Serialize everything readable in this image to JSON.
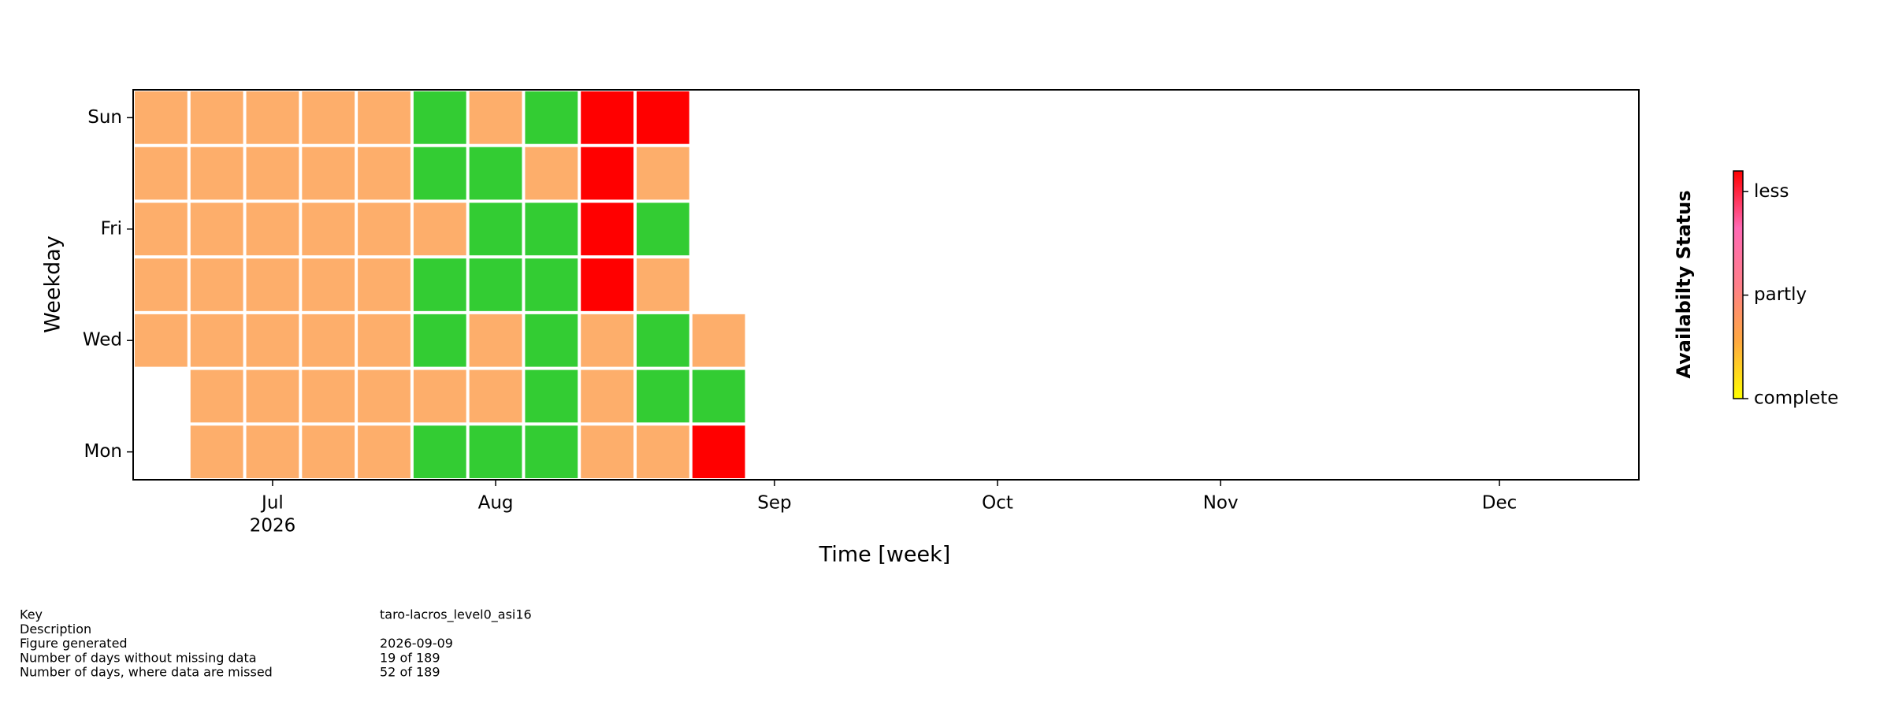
{
  "chart_data": {
    "type": "heatmap",
    "x_label": "Time [week]",
    "y_label": "Weekday",
    "categories": [
      "Mon",
      null,
      "Wed",
      null,
      "Fri",
      null,
      "Sun"
    ],
    "x": [
      0,
      1,
      2,
      3,
      4,
      5,
      6,
      7,
      8,
      9,
      10
    ],
    "values": [
      [
        null,
        1,
        1,
        1,
        1,
        0,
        0,
        0,
        1,
        1,
        2
      ],
      [
        null,
        1,
        1,
        1,
        1,
        1,
        1,
        0,
        1,
        0,
        0
      ],
      [
        1,
        1,
        1,
        1,
        1,
        0,
        1,
        0,
        1,
        0,
        1
      ],
      [
        1,
        1,
        1,
        1,
        1,
        0,
        0,
        0,
        2,
        1,
        null
      ],
      [
        1,
        1,
        1,
        1,
        1,
        1,
        0,
        0,
        2,
        0,
        null
      ],
      [
        1,
        1,
        1,
        1,
        1,
        0,
        0,
        1,
        2,
        1,
        null
      ],
      [
        1,
        1,
        1,
        1,
        1,
        0,
        1,
        0,
        2,
        2,
        null
      ]
    ],
    "colors": [
      "#33cc33",
      "#fdae6b",
      "#ff0000"
    ],
    "xlim": [
      0,
      27
    ],
    "ylim": [
      -0.5,
      6.5
    ],
    "xticks": [
      {
        "value": 2.5,
        "label": "Jul"
      },
      {
        "value": 6.5,
        "label": "Aug"
      },
      {
        "value": 11.5,
        "label": "Sep"
      },
      {
        "value": 15.5,
        "label": "Oct"
      },
      {
        "value": 19.5,
        "label": "Nov"
      },
      {
        "value": 24.5,
        "label": "Dec"
      }
    ],
    "x_year_label": "2026",
    "colorbar_label": "Availabilty Status",
    "colorbar_colors": [
      "#ffff00",
      "#ffa940",
      "#ff7f8a",
      "#ff69b4",
      "#ff0000"
    ],
    "colorbar_lim": [
      0,
      2.2
    ],
    "colorbar_ticks": [
      {
        "value": 0,
        "label": "complete"
      },
      {
        "value": 1,
        "label": "partly"
      },
      {
        "value": 2,
        "label": "less"
      }
    ]
  },
  "info": [
    {
      "label": "Key",
      "value": "taro-lacros_level0_asi16"
    },
    {
      "label": "Description"
    },
    {
      "label": "Figure generated",
      "value": "2026-09-09"
    },
    {
      "label": "Number of days without missing data",
      "value": "19 of 189"
    },
    {
      "label": "Number of days, where data are missed",
      "value": "52 of 189"
    }
  ]
}
